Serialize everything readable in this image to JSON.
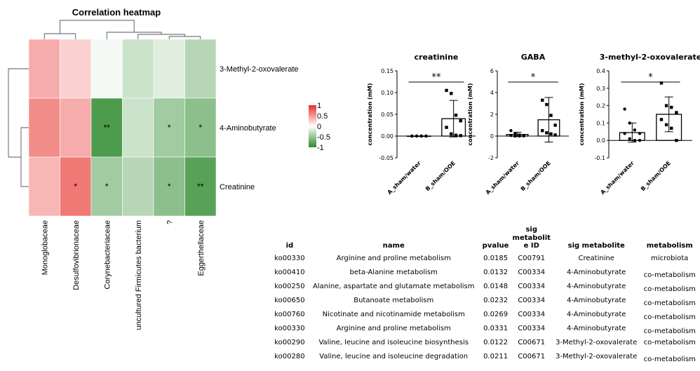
{
  "chart_data": [
    {
      "type": "heatmap",
      "title": "Correlation heatmap",
      "rows": [
        "3-Methyl-2-oxovalerate",
        "4-Aminobutyrate",
        "Creatinine"
      ],
      "columns": [
        "Monoglobaceae",
        "Desulfovibrionaceae",
        "Corynebacteriaceae",
        "uncultured Firmicutes bacterium",
        "?",
        "Eggerthellaceae"
      ],
      "values": [
        [
          0.4,
          0.22,
          -0.05,
          -0.25,
          -0.15,
          -0.35
        ],
        [
          0.55,
          0.4,
          -0.85,
          -0.25,
          -0.45,
          -0.55
        ],
        [
          0.35,
          0.65,
          -0.45,
          -0.35,
          -0.55,
          -0.8
        ]
      ],
      "stars": [
        [
          "",
          "",
          "",
          "",
          "",
          ""
        ],
        [
          "",
          "",
          "**",
          "",
          "*",
          "*"
        ],
        [
          "",
          "*",
          "*",
          "",
          "*",
          "**"
        ]
      ],
      "colorbar": {
        "ticks": [
          "1",
          "0.5",
          "0",
          "-0.5",
          "-1"
        ],
        "range": [
          -1,
          1
        ],
        "high_color": "#e8302a",
        "mid_color": "#ffffff",
        "low_color": "#2e8b2e"
      }
    },
    {
      "type": "bar",
      "title": "creatinine",
      "ylabel": "concentration (mM)",
      "categories": [
        "A_sham/water",
        "B_sham/OOE"
      ],
      "ylim": [
        -0.05,
        0.15
      ],
      "yticks": [
        "-0.05",
        "0.00",
        "0.05",
        "0.10",
        "0.15"
      ],
      "means": [
        0.0,
        0.04
      ],
      "errors": [
        0.0,
        0.042
      ],
      "points": [
        [
          0,
          0,
          0,
          0,
          0,
          0,
          0,
          0
        ],
        [
          0.105,
          0.098,
          0.048,
          0.035,
          0.02,
          0.005,
          0.002,
          0.001
        ]
      ],
      "significance": "**"
    },
    {
      "type": "bar",
      "title": "GABA",
      "ylabel": "concentration (mM)",
      "categories": [
        "A_sham/water",
        "B_sham/OOE"
      ],
      "ylim": [
        -2,
        6
      ],
      "yticks": [
        "-2",
        "0",
        "2",
        "4",
        "6"
      ],
      "means": [
        0.15,
        1.5
      ],
      "errors": [
        0.2,
        2.05
      ],
      "points": [
        [
          0.5,
          0.2,
          0.1,
          0.05,
          0.05,
          0.0,
          0.0,
          0.0
        ],
        [
          3.3,
          2.9,
          1.9,
          1.0,
          0.5,
          0.3,
          0.2,
          0.1
        ]
      ],
      "significance": "*"
    },
    {
      "type": "bar",
      "title": "3-methyl-2-oxovalerate",
      "ylabel": "concentration (mM)",
      "categories": [
        "A_sham/water",
        "B_sham/OOE"
      ],
      "ylim": [
        -0.1,
        0.4
      ],
      "yticks": [
        "-0.1",
        "0.0",
        "0.1",
        "0.2",
        "0.3",
        "0.4"
      ],
      "means": [
        0.045,
        0.15
      ],
      "errors": [
        0.055,
        0.1
      ],
      "points": [
        [
          0.18,
          0.1,
          0.06,
          0.04,
          0.04,
          0.01,
          0.0,
          0.0
        ],
        [
          0.33,
          0.2,
          0.19,
          0.16,
          0.12,
          0.09,
          0.07,
          0.0
        ]
      ],
      "significance": "*"
    }
  ],
  "table": {
    "headers": {
      "id": "id",
      "name": "name",
      "pvalue": "pvalue",
      "sig_id_1": "sig",
      "sig_id_2": "metabolit",
      "sig_id_3": "e ID",
      "sig_metabolite": "sig metabolite",
      "metabolism": "metabolism"
    },
    "rows": [
      {
        "id": "ko00330",
        "name": "Arginine and proline metabolism",
        "pvalue": "0.0185",
        "sig_id": "C00791",
        "sig_metabolite": "Creatinine",
        "metabolism": "microbiota"
      },
      {
        "id": "ko00410",
        "name": "beta-Alanine metabolism",
        "pvalue": "0.0132",
        "sig_id": "C00334",
        "sig_metabolite": "4-Aminobutyrate",
        "metabolism": "co-metabolism"
      },
      {
        "id": "ko00250",
        "name": "Alanine, aspartate and glutamate metabolism",
        "pvalue": "0.0148",
        "sig_id": "C00334",
        "sig_metabolite": "4-Aminobutyrate",
        "metabolism": "co-metabolism"
      },
      {
        "id": "ko00650",
        "name": "Butanoate metabolism",
        "pvalue": "0.0232",
        "sig_id": "C00334",
        "sig_metabolite": "4-Aminobutyrate",
        "metabolism": "co-metabolism"
      },
      {
        "id": "ko00760",
        "name": "Nicotinate and nicotinamide metabolism",
        "pvalue": "0.0269",
        "sig_id": "C00334",
        "sig_metabolite": "4-Aminobutyrate",
        "metabolism": "co-metabolism"
      },
      {
        "id": "ko00330",
        "name": "Arginine and proline metabolism",
        "pvalue": "0.0331",
        "sig_id": "C00334",
        "sig_metabolite": "4-Aminobutyrate",
        "metabolism": "co-metabolism"
      },
      {
        "id": "ko00290",
        "name": "Valine, leucine and isoleucine biosynthesis",
        "pvalue": "0.0122",
        "sig_id": "C00671",
        "sig_metabolite": "3-Methyl-2-oxovalerate",
        "metabolism": "co-metabolism"
      },
      {
        "id": "ko00280",
        "name": "Valine, leucine and isoleucine degradation",
        "pvalue": "0.0211",
        "sig_id": "C00671",
        "sig_metabolite": "3-Methyl-2-oxovalerate",
        "metabolism": "co-metabolism"
      }
    ]
  }
}
